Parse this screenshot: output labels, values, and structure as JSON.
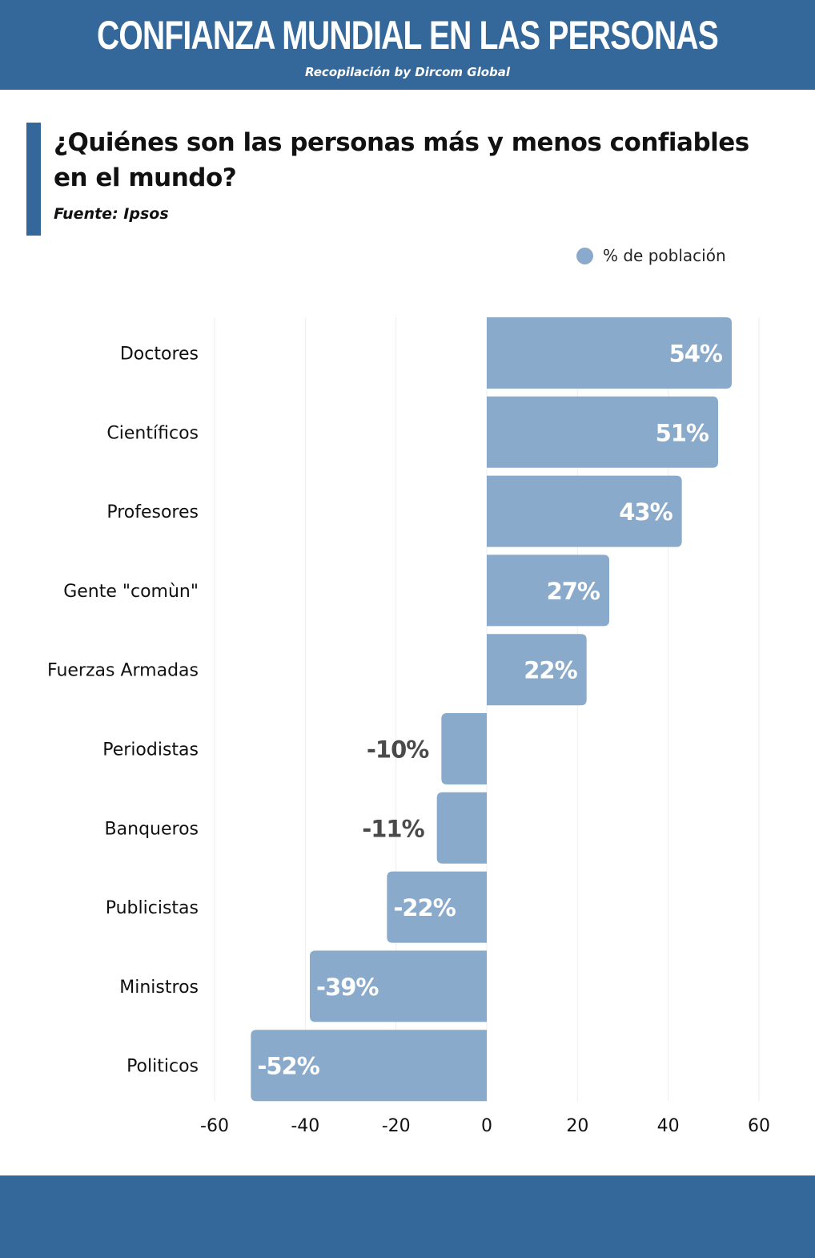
{
  "header": {
    "title": "CONFIANZA MUNDIAL EN LAS PERSONAS",
    "subtitle": "Recopilación by Dircom Global"
  },
  "colors": {
    "brand": "#34679a",
    "bar": "#8aaacb",
    "label_inside": "#ffffff",
    "label_outside": "#4a4a4a"
  },
  "chart_data": {
    "type": "bar",
    "orientation": "horizontal",
    "title": "¿Quiénes son las personas más y menos confiables en el mundo?",
    "source": "Fuente: Ipsos",
    "legend": "% de población",
    "legend_position": "top-right",
    "categories": [
      "Doctores",
      "Científicos",
      "Profesores",
      "Gente \"comùn\"",
      "Fuerzas Armadas",
      "Periodistas",
      "Banqueros",
      "Publicistas",
      "Ministros",
      "Politicos"
    ],
    "values": [
      54,
      51,
      43,
      27,
      22,
      -10,
      -11,
      -22,
      -39,
      -52
    ],
    "data_labels": [
      "54%",
      "51%",
      "43%",
      "27%",
      "22%",
      "-10%",
      "-11%",
      "-22%",
      "-39%",
      "-52%"
    ],
    "xlim": [
      -60,
      60
    ],
    "xticks": [
      "-60",
      "-40",
      "-20",
      "0",
      "20",
      "40",
      "60"
    ],
    "xtick_values": [
      -60,
      -40,
      -20,
      0,
      20,
      40,
      60
    ],
    "grid": true,
    "xlabel": "",
    "ylabel": ""
  }
}
